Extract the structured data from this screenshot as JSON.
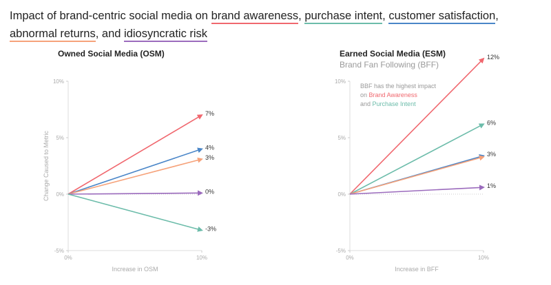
{
  "title": {
    "prefix": "Impact of brand-centric social media on ",
    "terms": [
      {
        "text": "brand awareness",
        "color": "#f0676e",
        "after": ", "
      },
      {
        "text": "purchase intent",
        "color": "#6cbcaa",
        "after": ", "
      },
      {
        "text": "customer satisfaction",
        "color": "#4a86c8",
        "after": ", "
      },
      {
        "text": "abnormal returns",
        "color": "#f6a27a",
        "after": ", and "
      },
      {
        "text": "idiosyncratic risk",
        "color": "#9b6bbd",
        "after": ""
      }
    ]
  },
  "chart_data": [
    {
      "type": "line",
      "title": "Owned Social Media (OSM)",
      "subtitle": "",
      "xlabel": "Increase in OSM",
      "ylabel": "Change Caused to Metric",
      "xlim": [
        0,
        10
      ],
      "ylim": [
        -5,
        10
      ],
      "xticks": [
        "0%",
        "10%"
      ],
      "yticks": [
        "10%",
        "5%",
        "0%",
        "-5%"
      ],
      "series": [
        {
          "color": "#f0676e",
          "x": [
            0,
            10
          ],
          "y": [
            0,
            7
          ],
          "label": "7%"
        },
        {
          "color": "#4a86c8",
          "x": [
            0,
            10
          ],
          "y": [
            0,
            4
          ],
          "label": "4%"
        },
        {
          "color": "#f6a27a",
          "x": [
            0,
            10
          ],
          "y": [
            0,
            3.1
          ],
          "label": "3%"
        },
        {
          "color": "#9b6bbd",
          "x": [
            0,
            10
          ],
          "y": [
            0,
            0.1
          ],
          "label": "0%"
        },
        {
          "color": "#6cbcaa",
          "x": [
            0,
            10
          ],
          "y": [
            0,
            -3.2
          ],
          "label": "-3%"
        }
      ]
    },
    {
      "type": "line",
      "title": "Earned Social Media (ESM)",
      "subtitle": "Brand Fan Following (BFF)",
      "xlabel": "Increase in BFF",
      "ylabel": "",
      "xlim": [
        0,
        10
      ],
      "ylim": [
        -5,
        10
      ],
      "xticks": [
        "0%",
        "10%"
      ],
      "yticks": [
        "10%",
        "5%",
        "0%",
        "-5%"
      ],
      "annotation": {
        "line1": "BBF has the highest impact",
        "line2_prefix": "on ",
        "line2_hl": "Brand Awareness",
        "line3_prefix": "and ",
        "line3_hl": "Purchase Intent"
      },
      "series": [
        {
          "color": "#f0676e",
          "x": [
            0,
            10
          ],
          "y": [
            0,
            12
          ],
          "label": "12%"
        },
        {
          "color": "#6cbcaa",
          "x": [
            0,
            10
          ],
          "y": [
            0,
            6.2
          ],
          "label": "6%"
        },
        {
          "color": "#4a86c8",
          "x": [
            0,
            10
          ],
          "y": [
            0,
            3.4
          ],
          "label": "3%"
        },
        {
          "color": "#f6a27a",
          "x": [
            0,
            10
          ],
          "y": [
            0,
            3.3
          ],
          "label": ""
        },
        {
          "color": "#9b6bbd",
          "x": [
            0,
            10
          ],
          "y": [
            0,
            0.6
          ],
          "label": "1%"
        }
      ]
    }
  ]
}
